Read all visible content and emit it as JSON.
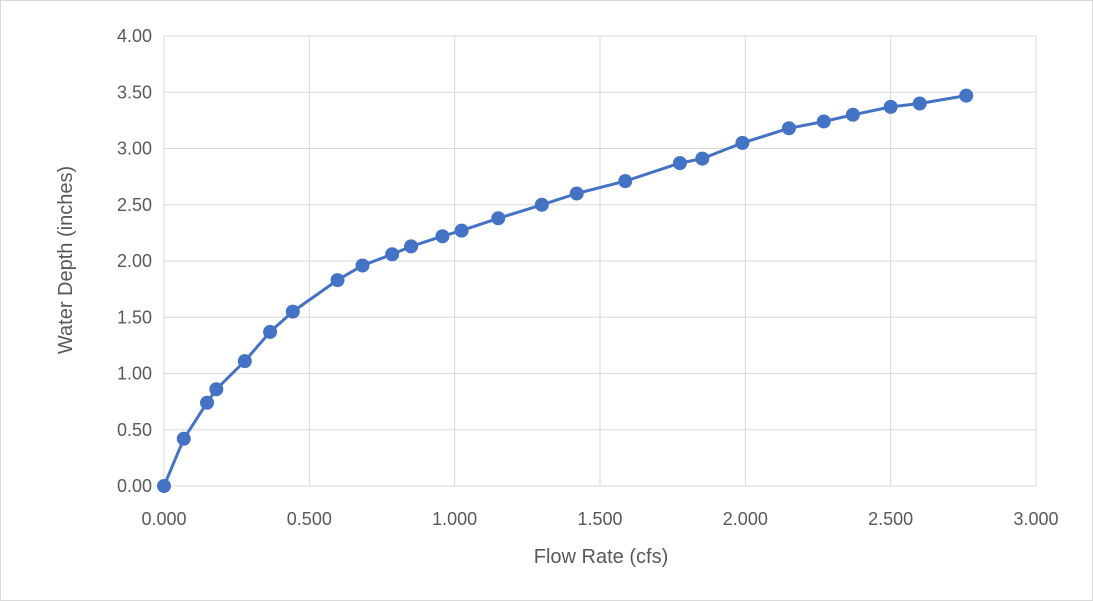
{
  "chart_data": {
    "type": "scatter",
    "title": "",
    "xlabel": "Flow Rate (cfs)",
    "ylabel": "Water Depth (inches)",
    "xlim": [
      0,
      3
    ],
    "ylim": [
      0,
      4
    ],
    "x_ticks": [
      "0.000",
      "0.500",
      "1.000",
      "1.500",
      "2.000",
      "2.500",
      "3.000"
    ],
    "y_ticks": [
      "0.00",
      "0.50",
      "1.00",
      "1.50",
      "2.00",
      "2.50",
      "3.00",
      "3.50",
      "4.00"
    ],
    "grid": true,
    "legend": "none",
    "marker": "circle",
    "connected": true,
    "series": [
      {
        "color": "#4472c4",
        "x": [
          0.0,
          0.068,
          0.148,
          0.18,
          0.278,
          0.365,
          0.443,
          0.597,
          0.683,
          0.785,
          0.85,
          0.958,
          1.024,
          1.15,
          1.3,
          1.42,
          1.587,
          1.775,
          1.852,
          1.99,
          2.15,
          2.27,
          2.37,
          2.5,
          2.6,
          2.76
        ],
        "y": [
          0.0,
          0.42,
          0.74,
          0.86,
          1.11,
          1.37,
          1.55,
          1.83,
          1.96,
          2.06,
          2.13,
          2.22,
          2.27,
          2.38,
          2.5,
          2.6,
          2.71,
          2.87,
          2.91,
          3.05,
          3.18,
          3.24,
          3.3,
          3.37,
          3.4,
          3.47
        ]
      }
    ]
  }
}
